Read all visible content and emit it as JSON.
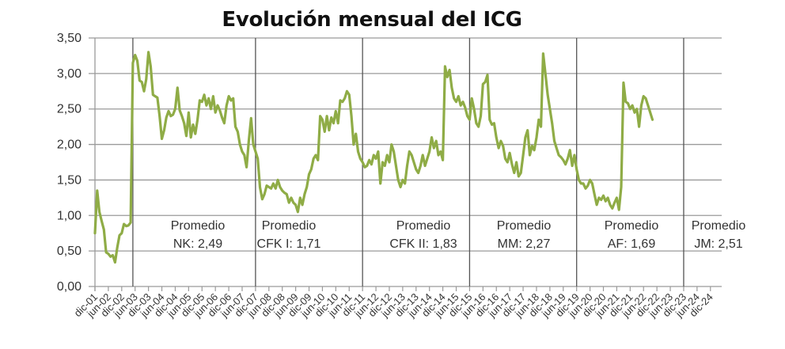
{
  "chart_data": {
    "type": "line",
    "title": "Evolución mensual del ICG",
    "xlabel": "",
    "ylabel": "",
    "ylim": [
      0,
      3.5
    ],
    "y_ticks": [
      "0,00",
      "0,50",
      "1,00",
      "1,50",
      "2,00",
      "2,50",
      "3,00",
      "3,50"
    ],
    "grid": true,
    "legend": null,
    "line_color": "#8fac46",
    "x_ticks": [
      "dic-01",
      "jun-02",
      "dic-02",
      "jun-03",
      "dic-03",
      "jun-04",
      "dic-04",
      "jun-05",
      "dic-05",
      "jun-06",
      "dic-06",
      "jun-07",
      "dic-07",
      "jun-08",
      "dic-08",
      "jun-09",
      "dic-09",
      "jun-10",
      "dic-10",
      "jun-11",
      "dic-11",
      "jun-12",
      "dic-12",
      "jun-13",
      "dic-13",
      "jun-14",
      "dic-14",
      "jun-15",
      "dic-15",
      "jun-16",
      "dic-16",
      "jun-17",
      "dic-17",
      "jun-18",
      "dic-18",
      "jun-19",
      "dic-19",
      "jun-20",
      "dic-20",
      "jun-21",
      "dic-21",
      "jun-22",
      "dic-22",
      "jun-23",
      "dic-23",
      "jun-24",
      "dic-24"
    ],
    "period_dividers": [
      "may-03",
      "dic-07",
      "dic-11",
      "dic-15",
      "dic-19",
      "dic-23"
    ],
    "annotations": [
      {
        "line1": "Promedio",
        "line2": "NK: 2,49",
        "period": "NK",
        "average": 2.49
      },
      {
        "line1": "Promedio",
        "line2": "CFK I: 1,71",
        "period": "CFK I",
        "average": 1.71
      },
      {
        "line1": "Promedio",
        "line2": "CFK II: 1,83",
        "period": "CFK II",
        "average": 1.83
      },
      {
        "line1": "Promedio",
        "line2": "MM: 2,27",
        "period": "MM",
        "average": 2.27
      },
      {
        "line1": "Promedio",
        "line2": "AF: 1,69",
        "period": "AF",
        "average": 1.69
      },
      {
        "line1": "Promedio",
        "line2": "JM: 2,51",
        "period": "JM",
        "average": 2.51
      }
    ],
    "series": [
      {
        "name": "ICG",
        "start": "dic-01",
        "frequency": "monthly",
        "values": [
          0.75,
          1.35,
          1.05,
          0.92,
          0.8,
          0.48,
          0.46,
          0.42,
          0.44,
          0.34,
          0.55,
          0.72,
          0.75,
          0.88,
          0.85,
          0.86,
          0.9,
          3.15,
          3.26,
          3.18,
          2.9,
          2.88,
          2.75,
          2.92,
          3.3,
          3.1,
          2.7,
          2.68,
          2.66,
          2.4,
          2.08,
          2.2,
          2.38,
          2.47,
          2.4,
          2.42,
          2.5,
          2.8,
          2.48,
          2.4,
          2.3,
          2.12,
          2.45,
          2.1,
          2.28,
          2.15,
          2.35,
          2.62,
          2.6,
          2.7,
          2.55,
          2.65,
          2.5,
          2.68,
          2.45,
          2.55,
          2.48,
          2.38,
          2.3,
          2.55,
          2.68,
          2.62,
          2.65,
          2.25,
          2.18,
          2.0,
          1.9,
          1.85,
          1.68,
          2.05,
          2.37,
          2.0,
          1.9,
          1.8,
          1.4,
          1.23,
          1.3,
          1.42,
          1.4,
          1.38,
          1.45,
          1.38,
          1.5,
          1.4,
          1.35,
          1.32,
          1.3,
          1.18,
          1.25,
          1.18,
          1.15,
          1.05,
          1.25,
          1.15,
          1.3,
          1.4,
          1.58,
          1.65,
          1.8,
          1.85,
          1.78,
          2.4,
          2.35,
          2.18,
          2.4,
          2.2,
          2.38,
          2.3,
          2.47,
          2.3,
          2.62,
          2.6,
          2.65,
          2.75,
          2.7,
          2.4,
          2.0,
          2.15,
          1.9,
          1.8,
          1.75,
          1.68,
          1.7,
          1.78,
          1.72,
          1.85,
          1.8,
          1.9,
          1.45,
          1.75,
          1.7,
          1.85,
          1.75,
          2.0,
          1.9,
          1.7,
          1.5,
          1.4,
          1.5,
          1.45,
          1.7,
          1.9,
          1.85,
          1.75,
          1.65,
          1.6,
          1.7,
          1.85,
          1.7,
          1.8,
          1.9,
          2.1,
          1.95,
          2.05,
          1.85,
          1.9,
          1.78,
          3.1,
          2.95,
          3.05,
          2.8,
          2.65,
          2.6,
          2.68,
          2.55,
          2.6,
          2.52,
          2.4,
          2.35,
          2.65,
          2.5,
          2.3,
          2.25,
          2.4,
          2.85,
          2.88,
          2.98,
          2.35,
          2.28,
          2.3,
          2.1,
          1.95,
          2.05,
          1.98,
          1.8,
          1.75,
          1.88,
          1.72,
          1.6,
          1.75,
          1.55,
          1.6,
          1.85,
          2.1,
          2.2,
          1.85,
          1.98,
          1.92,
          2.1,
          2.35,
          2.25,
          3.28,
          3.0,
          2.7,
          2.5,
          2.3,
          2.05,
          1.95,
          1.85,
          1.82,
          1.78,
          1.72,
          1.8,
          1.92,
          1.7,
          1.85,
          1.65,
          1.5,
          1.45,
          1.45,
          1.38,
          1.42,
          1.5,
          1.45,
          1.3,
          1.15,
          1.25,
          1.22,
          1.28,
          1.2,
          1.25,
          1.15,
          1.1,
          1.18,
          1.25,
          1.08,
          1.4,
          2.87,
          2.6,
          2.58,
          2.5,
          2.55,
          2.45,
          2.5,
          2.25,
          2.55,
          2.68,
          2.65,
          2.55,
          2.45,
          2.35
        ]
      }
    ]
  }
}
